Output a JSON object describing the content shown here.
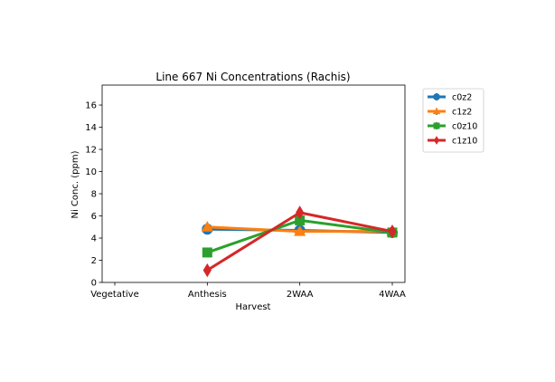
{
  "chart_data": {
    "type": "line",
    "title": "Line 667 Ni Concentrations (Rachis)",
    "xlabel": "Harvest",
    "ylabel": "Ni Conc. (ppm)",
    "categories": [
      "Vegetative",
      "Anthesis",
      "2WAA",
      "4WAA"
    ],
    "ylim": [
      0,
      17.8
    ],
    "yticks": [
      0,
      2,
      4,
      6,
      8,
      10,
      12,
      14,
      16
    ],
    "grid": false,
    "legend_position": "outside-top-right",
    "series": [
      {
        "name": "c0z2",
        "color": "#1f77b4",
        "marker": "circle",
        "values": [
          null,
          4.8,
          4.7,
          4.5
        ]
      },
      {
        "name": "c1z2",
        "color": "#ff7f0e",
        "marker": "triangle",
        "values": [
          null,
          5.0,
          4.6,
          4.6
        ]
      },
      {
        "name": "c0z10",
        "color": "#2ca02c",
        "marker": "square",
        "values": [
          null,
          2.7,
          5.6,
          4.5
        ]
      },
      {
        "name": "c1z10",
        "color": "#d62728",
        "marker": "diamond",
        "values": [
          null,
          1.1,
          6.3,
          4.6
        ]
      }
    ]
  }
}
